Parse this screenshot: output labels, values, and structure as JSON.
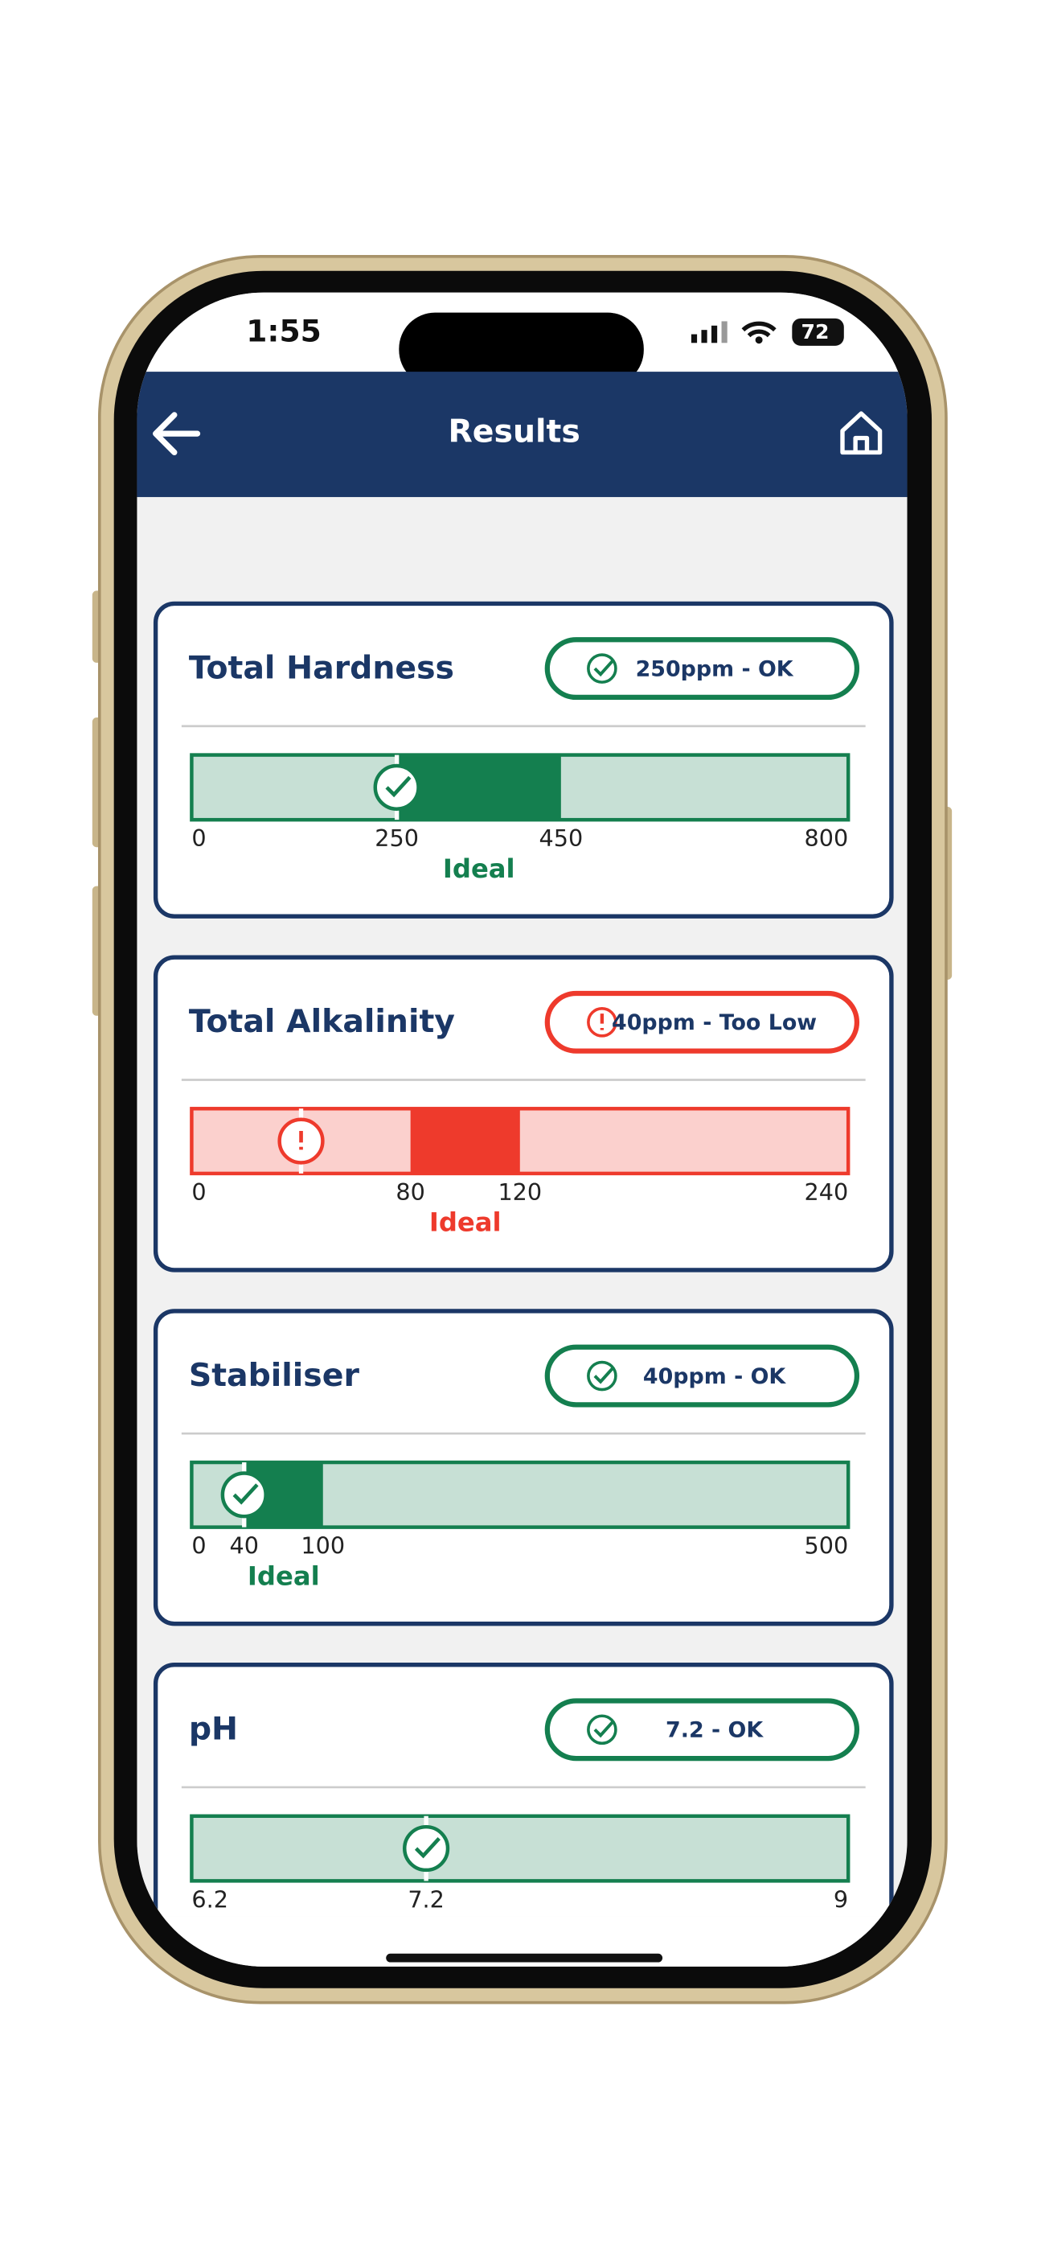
{
  "status_bar": {
    "time": "1:55",
    "battery": "72"
  },
  "header": {
    "title": "Results"
  },
  "results": [
    {
      "title": "Total Hardness",
      "badge": "250ppm - OK",
      "status": "ok",
      "color": "#147f4f",
      "value": 250,
      "ticks": [
        0,
        250,
        450,
        800
      ],
      "ideal": [
        250,
        450
      ],
      "ideal_label": "Ideal"
    },
    {
      "title": "Total Alkalinity",
      "badge": "40ppm - Too Low",
      "status": "low",
      "color": "#ee3a2c",
      "value": 40,
      "ticks": [
        0,
        80,
        120,
        240
      ],
      "ideal": [
        80,
        120
      ],
      "ideal_label": "Ideal"
    },
    {
      "title": "Stabiliser",
      "badge": "40ppm - OK",
      "status": "ok",
      "color": "#147f4f",
      "value": 40,
      "ticks": [
        0,
        40,
        100,
        500
      ],
      "ideal": [
        40,
        100
      ],
      "ideal_label": "Ideal"
    },
    {
      "title": "pH",
      "badge": "7.2 - OK",
      "status": "ok",
      "color": "#147f4f",
      "value": 7.2,
      "ticks": [
        6.2,
        7.2,
        9
      ]
    }
  ]
}
